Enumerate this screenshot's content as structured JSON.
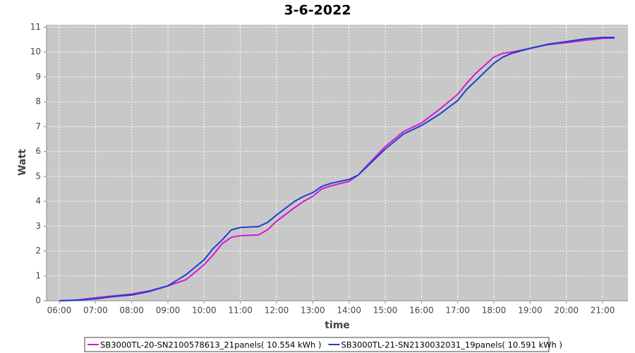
{
  "chart_data": {
    "type": "line",
    "title": "3-6-2022",
    "x_label": "time",
    "y_label": "Watt",
    "x": [
      6.0,
      6.5,
      7.0,
      7.5,
      8.0,
      8.5,
      9.0,
      9.5,
      10.0,
      10.25,
      10.5,
      10.75,
      11.0,
      11.5,
      11.75,
      12.0,
      12.5,
      12.75,
      13.0,
      13.25,
      13.5,
      14.0,
      14.25,
      14.5,
      15.0,
      15.5,
      16.0,
      16.5,
      17.0,
      17.25,
      17.5,
      18.0,
      18.25,
      18.5,
      19.0,
      19.5,
      20.0,
      20.5,
      21.0,
      21.33
    ],
    "series": [
      {
        "name": "SB3000TL-20-SN2100578613_21panels( 10.554 kWh )",
        "color": "#d11ad1",
        "values": [
          0,
          0.03,
          0.12,
          0.2,
          0.27,
          0.4,
          0.6,
          0.85,
          1.45,
          1.85,
          2.3,
          2.55,
          2.62,
          2.65,
          2.85,
          3.2,
          3.75,
          4.0,
          4.2,
          4.5,
          4.62,
          4.8,
          5.05,
          5.45,
          6.2,
          6.8,
          7.15,
          7.7,
          8.3,
          8.75,
          9.15,
          9.8,
          9.95,
          10.0,
          10.15,
          10.3,
          10.38,
          10.47,
          10.55,
          10.56
        ]
      },
      {
        "name": "SB3000TL-21-SN2130032031_19panels( 10.591 kWh )",
        "color": "#1a3fd1",
        "values": [
          0,
          0.02,
          0.08,
          0.17,
          0.23,
          0.38,
          0.6,
          1.05,
          1.65,
          2.1,
          2.45,
          2.85,
          2.95,
          2.98,
          3.15,
          3.45,
          4.0,
          4.2,
          4.35,
          4.6,
          4.72,
          4.88,
          5.05,
          5.4,
          6.1,
          6.7,
          7.05,
          7.5,
          8.05,
          8.5,
          8.85,
          9.55,
          9.8,
          9.95,
          10.15,
          10.32,
          10.42,
          10.53,
          10.59,
          10.59
        ]
      }
    ],
    "xlim": [
      5.65,
      21.7
    ],
    "ylim": [
      0,
      11.1
    ],
    "xticks": [
      {
        "value": 6,
        "label": "06:00"
      },
      {
        "value": 7,
        "label": "07:00"
      },
      {
        "value": 8,
        "label": "08:00"
      },
      {
        "value": 9,
        "label": "09:00"
      },
      {
        "value": 10,
        "label": "10:00"
      },
      {
        "value": 11,
        "label": "11:00"
      },
      {
        "value": 12,
        "label": "12:00"
      },
      {
        "value": 13,
        "label": "13:00"
      },
      {
        "value": 14,
        "label": "14:00"
      },
      {
        "value": 15,
        "label": "15:00"
      },
      {
        "value": 16,
        "label": "16:00"
      },
      {
        "value": 17,
        "label": "17:00"
      },
      {
        "value": 18,
        "label": "18:00"
      },
      {
        "value": 19,
        "label": "19:00"
      },
      {
        "value": 20,
        "label": "20:00"
      },
      {
        "value": 21,
        "label": "21:00"
      }
    ],
    "yticks": [
      0,
      1,
      2,
      3,
      4,
      5,
      6,
      7,
      8,
      9,
      10,
      11
    ],
    "grid": true
  }
}
